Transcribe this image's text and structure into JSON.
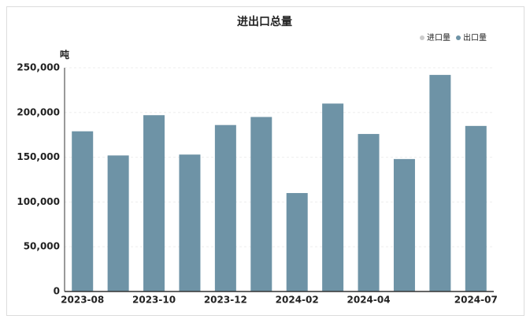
{
  "chart_data": {
    "type": "bar",
    "title": "进出口总量",
    "y_label": "吨",
    "categories": [
      "2023-08",
      null,
      "2023-10",
      null,
      "2023-12",
      null,
      "2024-02",
      null,
      "2024-04",
      null,
      null,
      "2024-07"
    ],
    "series": [
      {
        "name": "进口量",
        "color": "#cccccc",
        "hidden": true,
        "values": [
          null,
          null,
          null,
          null,
          null,
          null,
          null,
          null,
          null,
          null,
          null,
          null
        ]
      },
      {
        "name": "出口量",
        "color": "#6e93a6",
        "values": [
          179000,
          152000,
          197000,
          153000,
          186000,
          195000,
          110000,
          210000,
          176000,
          148000,
          242000,
          185000
        ]
      }
    ],
    "ylim": [
      0,
      250000
    ],
    "yticks": [
      0,
      {
        "value": 50000,
        "label": "50,000"
      },
      {
        "value": 100000,
        "label": "100,000"
      },
      {
        "value": 150000,
        "label": "150,000"
      },
      {
        "value": 200000,
        "label": "200,000"
      },
      {
        "value": 250000,
        "label": "250,000"
      }
    ],
    "grid": true,
    "legend": "top-right"
  }
}
